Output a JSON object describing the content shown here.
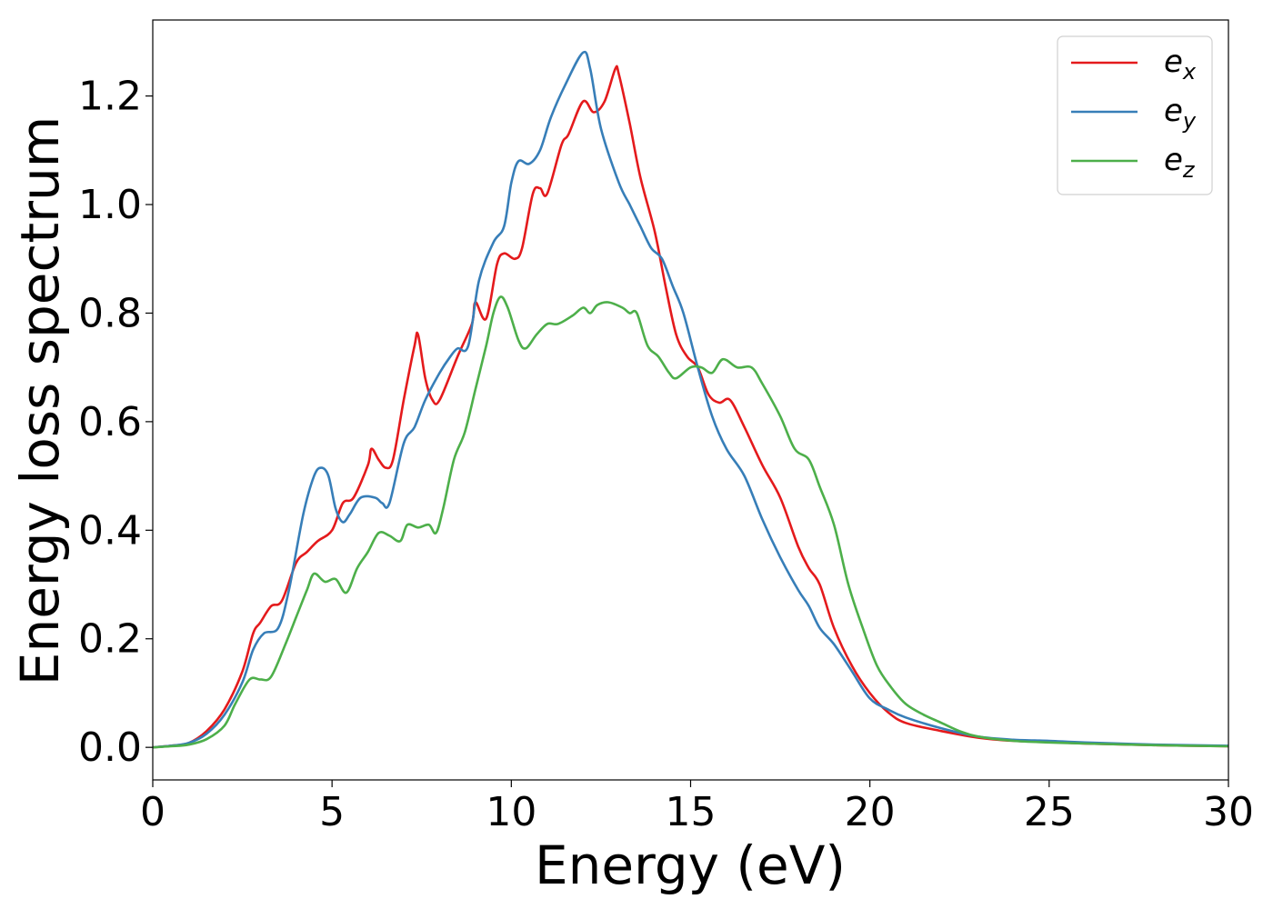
{
  "chart_data": {
    "type": "line",
    "title": "",
    "xlabel": "Energy (eV)",
    "ylabel": "Energy loss spectrum",
    "xlim": [
      0,
      30
    ],
    "ylim": [
      -0.06,
      1.34
    ],
    "xticks": [
      0,
      5,
      10,
      15,
      20,
      25,
      30
    ],
    "xtick_labels": [
      "0",
      "5",
      "10",
      "15",
      "20",
      "25",
      "30"
    ],
    "yticks": [
      0.0,
      0.2,
      0.4,
      0.6,
      0.8,
      1.0,
      1.2
    ],
    "ytick_labels": [
      "0.0",
      "0.2",
      "0.4",
      "0.6",
      "0.8",
      "1.0",
      "1.2"
    ],
    "grid": false,
    "legend": {
      "placement": "top-right"
    },
    "series": [
      {
        "name": "e_x",
        "label_base": "e",
        "label_sub": "x",
        "color": "#e41a1c",
        "points": [
          [
            0,
            0
          ],
          [
            0.5,
            0.003
          ],
          [
            1,
            0.008
          ],
          [
            1.5,
            0.03
          ],
          [
            2,
            0.07
          ],
          [
            2.5,
            0.14
          ],
          [
            2.8,
            0.21
          ],
          [
            3.0,
            0.23
          ],
          [
            3.3,
            0.26
          ],
          [
            3.6,
            0.27
          ],
          [
            4.0,
            0.34
          ],
          [
            4.3,
            0.36
          ],
          [
            4.6,
            0.38
          ],
          [
            5.0,
            0.4
          ],
          [
            5.3,
            0.45
          ],
          [
            5.6,
            0.46
          ],
          [
            6.0,
            0.52
          ],
          [
            6.1,
            0.55
          ],
          [
            6.3,
            0.53
          ],
          [
            6.5,
            0.515
          ],
          [
            6.7,
            0.53
          ],
          [
            7.0,
            0.64
          ],
          [
            7.3,
            0.74
          ],
          [
            7.4,
            0.76
          ],
          [
            7.6,
            0.68
          ],
          [
            7.8,
            0.64
          ],
          [
            8.0,
            0.64
          ],
          [
            8.5,
            0.72
          ],
          [
            8.9,
            0.78
          ],
          [
            9.0,
            0.82
          ],
          [
            9.3,
            0.79
          ],
          [
            9.6,
            0.89
          ],
          [
            9.8,
            0.91
          ],
          [
            10.1,
            0.9
          ],
          [
            10.3,
            0.92
          ],
          [
            10.6,
            1.02
          ],
          [
            10.8,
            1.03
          ],
          [
            11.0,
            1.02
          ],
          [
            11.4,
            1.11
          ],
          [
            11.6,
            1.13
          ],
          [
            12.0,
            1.19
          ],
          [
            12.3,
            1.17
          ],
          [
            12.6,
            1.19
          ],
          [
            12.9,
            1.25
          ],
          [
            13.0,
            1.24
          ],
          [
            13.3,
            1.15
          ],
          [
            13.6,
            1.05
          ],
          [
            14.0,
            0.95
          ],
          [
            14.3,
            0.85
          ],
          [
            14.6,
            0.76
          ],
          [
            14.9,
            0.72
          ],
          [
            15.2,
            0.7
          ],
          [
            15.5,
            0.65
          ],
          [
            15.8,
            0.635
          ],
          [
            16.1,
            0.64
          ],
          [
            16.5,
            0.59
          ],
          [
            17.0,
            0.52
          ],
          [
            17.5,
            0.46
          ],
          [
            18.0,
            0.37
          ],
          [
            18.3,
            0.33
          ],
          [
            18.6,
            0.3
          ],
          [
            19.0,
            0.22
          ],
          [
            19.5,
            0.15
          ],
          [
            20.0,
            0.1
          ],
          [
            20.5,
            0.065
          ],
          [
            21.0,
            0.045
          ],
          [
            22.0,
            0.03
          ],
          [
            23.0,
            0.018
          ],
          [
            24.0,
            0.012
          ],
          [
            25.0,
            0.01
          ],
          [
            26.0,
            0.007
          ],
          [
            28.0,
            0.004
          ],
          [
            30.0,
            0.002
          ]
        ]
      },
      {
        "name": "e_y",
        "label_base": "e",
        "label_sub": "y",
        "color": "#377eb8",
        "points": [
          [
            0,
            0
          ],
          [
            0.5,
            0.003
          ],
          [
            1,
            0.008
          ],
          [
            1.5,
            0.025
          ],
          [
            2,
            0.06
          ],
          [
            2.5,
            0.12
          ],
          [
            2.8,
            0.18
          ],
          [
            3.1,
            0.21
          ],
          [
            3.5,
            0.22
          ],
          [
            3.8,
            0.29
          ],
          [
            4.2,
            0.43
          ],
          [
            4.5,
            0.5
          ],
          [
            4.7,
            0.515
          ],
          [
            4.9,
            0.5
          ],
          [
            5.1,
            0.44
          ],
          [
            5.3,
            0.415
          ],
          [
            5.5,
            0.43
          ],
          [
            5.8,
            0.46
          ],
          [
            6.2,
            0.46
          ],
          [
            6.4,
            0.45
          ],
          [
            6.6,
            0.45
          ],
          [
            7.0,
            0.56
          ],
          [
            7.3,
            0.59
          ],
          [
            7.6,
            0.64
          ],
          [
            8.0,
            0.69
          ],
          [
            8.3,
            0.72
          ],
          [
            8.5,
            0.735
          ],
          [
            8.8,
            0.74
          ],
          [
            9.1,
            0.86
          ],
          [
            9.5,
            0.93
          ],
          [
            9.8,
            0.96
          ],
          [
            10.0,
            1.04
          ],
          [
            10.2,
            1.08
          ],
          [
            10.5,
            1.075
          ],
          [
            10.8,
            1.1
          ],
          [
            11.1,
            1.16
          ],
          [
            11.5,
            1.22
          ],
          [
            12.0,
            1.28
          ],
          [
            12.2,
            1.25
          ],
          [
            12.5,
            1.14
          ],
          [
            13.0,
            1.04
          ],
          [
            13.3,
            1.0
          ],
          [
            13.6,
            0.96
          ],
          [
            13.9,
            0.92
          ],
          [
            14.2,
            0.9
          ],
          [
            14.5,
            0.85
          ],
          [
            14.8,
            0.8
          ],
          [
            15.2,
            0.7
          ],
          [
            15.6,
            0.61
          ],
          [
            16.0,
            0.55
          ],
          [
            16.5,
            0.5
          ],
          [
            17.0,
            0.42
          ],
          [
            17.5,
            0.35
          ],
          [
            18.0,
            0.29
          ],
          [
            18.3,
            0.26
          ],
          [
            18.6,
            0.22
          ],
          [
            19.0,
            0.19
          ],
          [
            19.5,
            0.14
          ],
          [
            20.0,
            0.09
          ],
          [
            20.5,
            0.07
          ],
          [
            21.0,
            0.055
          ],
          [
            22.0,
            0.035
          ],
          [
            23.0,
            0.02
          ],
          [
            24.0,
            0.014
          ],
          [
            25.0,
            0.012
          ],
          [
            26.0,
            0.009
          ],
          [
            28.0,
            0.005
          ],
          [
            30.0,
            0.003
          ]
        ]
      },
      {
        "name": "e_z",
        "label_base": "e",
        "label_sub": "z",
        "color": "#4daf4a",
        "points": [
          [
            0,
            0
          ],
          [
            0.5,
            0.002
          ],
          [
            1,
            0.005
          ],
          [
            1.5,
            0.015
          ],
          [
            2,
            0.04
          ],
          [
            2.3,
            0.08
          ],
          [
            2.7,
            0.125
          ],
          [
            3.0,
            0.125
          ],
          [
            3.3,
            0.13
          ],
          [
            3.7,
            0.19
          ],
          [
            4.0,
            0.24
          ],
          [
            4.3,
            0.29
          ],
          [
            4.5,
            0.32
          ],
          [
            4.8,
            0.305
          ],
          [
            5.1,
            0.31
          ],
          [
            5.4,
            0.285
          ],
          [
            5.7,
            0.33
          ],
          [
            6.0,
            0.36
          ],
          [
            6.3,
            0.395
          ],
          [
            6.6,
            0.39
          ],
          [
            6.9,
            0.38
          ],
          [
            7.1,
            0.41
          ],
          [
            7.4,
            0.405
          ],
          [
            7.7,
            0.41
          ],
          [
            7.9,
            0.395
          ],
          [
            8.1,
            0.44
          ],
          [
            8.4,
            0.53
          ],
          [
            8.7,
            0.58
          ],
          [
            9.0,
            0.66
          ],
          [
            9.3,
            0.74
          ],
          [
            9.5,
            0.8
          ],
          [
            9.7,
            0.83
          ],
          [
            9.9,
            0.81
          ],
          [
            10.2,
            0.75
          ],
          [
            10.4,
            0.735
          ],
          [
            10.7,
            0.76
          ],
          [
            11.0,
            0.78
          ],
          [
            11.3,
            0.78
          ],
          [
            11.7,
            0.795
          ],
          [
            12.0,
            0.81
          ],
          [
            12.2,
            0.8
          ],
          [
            12.4,
            0.815
          ],
          [
            12.7,
            0.82
          ],
          [
            13.1,
            0.81
          ],
          [
            13.3,
            0.8
          ],
          [
            13.5,
            0.8
          ],
          [
            13.8,
            0.74
          ],
          [
            14.1,
            0.72
          ],
          [
            14.4,
            0.69
          ],
          [
            14.6,
            0.68
          ],
          [
            15.0,
            0.7
          ],
          [
            15.3,
            0.7
          ],
          [
            15.6,
            0.69
          ],
          [
            15.9,
            0.715
          ],
          [
            16.3,
            0.7
          ],
          [
            16.7,
            0.7
          ],
          [
            17.0,
            0.67
          ],
          [
            17.5,
            0.61
          ],
          [
            17.9,
            0.55
          ],
          [
            18.3,
            0.53
          ],
          [
            18.6,
            0.48
          ],
          [
            19.0,
            0.41
          ],
          [
            19.4,
            0.3
          ],
          [
            19.8,
            0.22
          ],
          [
            20.2,
            0.15
          ],
          [
            20.6,
            0.11
          ],
          [
            21.0,
            0.08
          ],
          [
            21.5,
            0.06
          ],
          [
            22.0,
            0.045
          ],
          [
            22.5,
            0.03
          ],
          [
            23.0,
            0.02
          ],
          [
            24.0,
            0.012
          ],
          [
            25.0,
            0.009
          ],
          [
            26.0,
            0.007
          ],
          [
            28.0,
            0.004
          ],
          [
            30.0,
            0.002
          ]
        ]
      }
    ]
  }
}
